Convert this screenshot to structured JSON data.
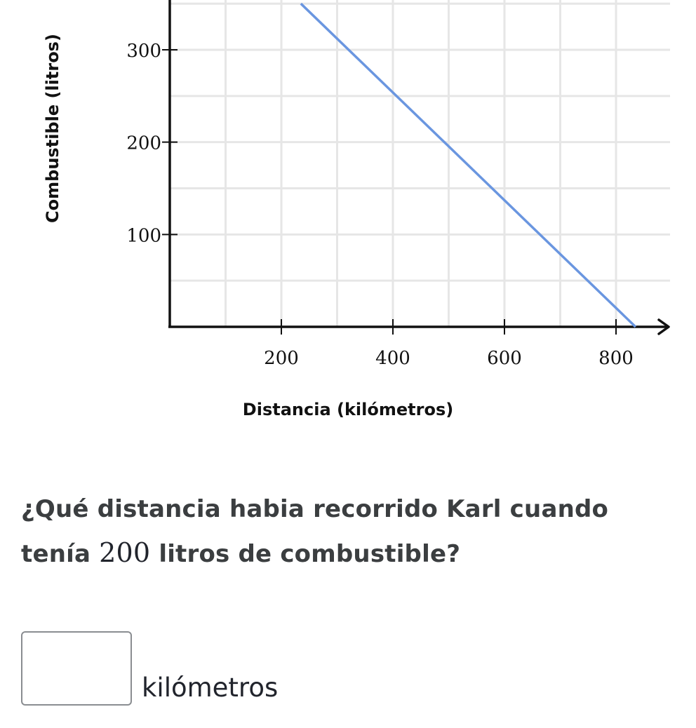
{
  "chart_data": {
    "type": "line",
    "xlabel": "Distancia (kilómetros)",
    "ylabel": "Combustible (litros)",
    "x_ticks": [
      200,
      400,
      600,
      800
    ],
    "y_ticks": [
      100,
      200,
      300
    ],
    "xlim": [
      0,
      900
    ],
    "ylim": [
      0,
      350
    ],
    "grid": true,
    "colors": {
      "line": "#6a96e0",
      "grid": "#e6e6e6",
      "axis": "#111111"
    },
    "series": [
      {
        "x": [
          235,
          835
        ],
        "y": [
          350,
          0
        ]
      }
    ]
  },
  "question": {
    "text_before": "¿Qué distancia habia recorrido Karl cuando tenía ",
    "number": "200",
    "text_after": " litros de combustible?"
  },
  "answer": {
    "value": "",
    "unit": "kilómetros"
  }
}
